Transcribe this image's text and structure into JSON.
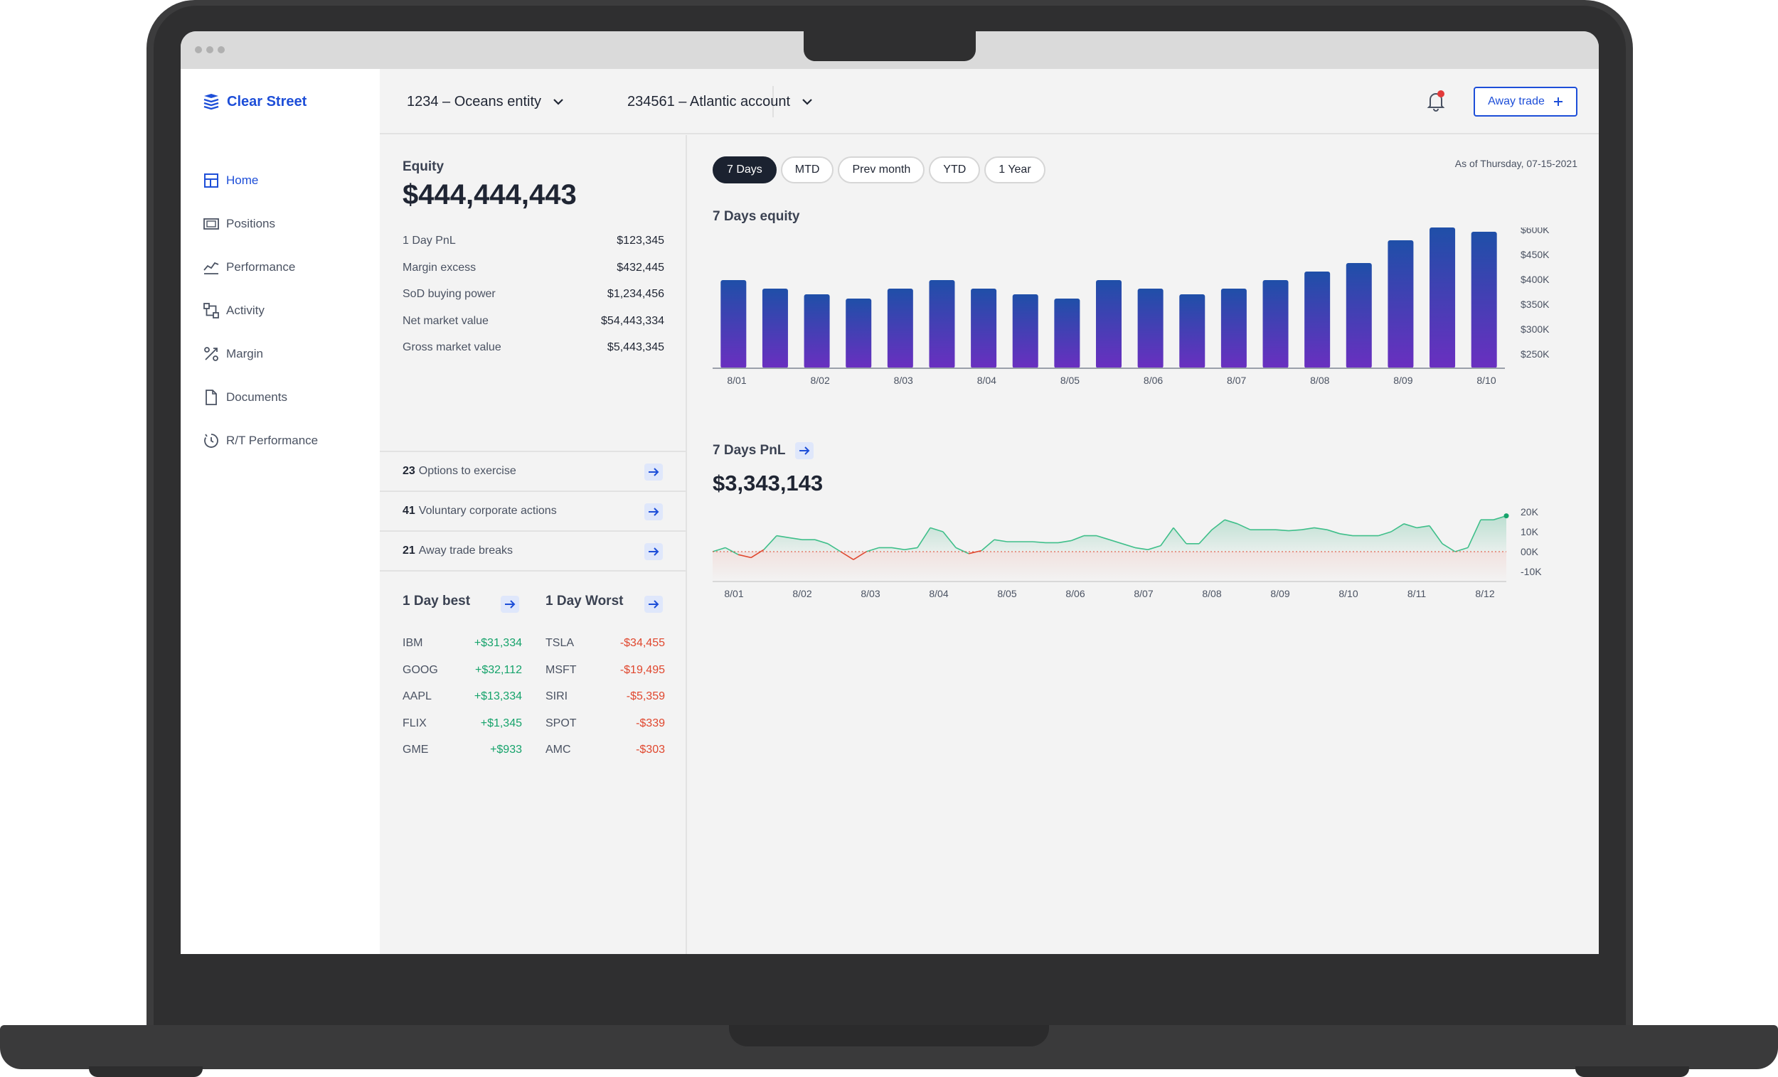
{
  "app": {
    "brand": "Clear Street"
  },
  "sidebar": {
    "items": [
      {
        "label": "Home",
        "icon": "home-icon",
        "active": true
      },
      {
        "label": "Positions",
        "icon": "positions-icon"
      },
      {
        "label": "Performance",
        "icon": "performance-icon"
      },
      {
        "label": "Activity",
        "icon": "activity-icon"
      },
      {
        "label": "Margin",
        "icon": "margin-icon"
      },
      {
        "label": "Documents",
        "icon": "documents-icon"
      },
      {
        "label": "R/T Performance",
        "icon": "rt-performance-icon"
      }
    ]
  },
  "topbar": {
    "entity": "1234 – Oceans entity",
    "account": "234561 – Atlantic account",
    "away_trade": "Away trade"
  },
  "summary": {
    "equity_label": "Equity",
    "equity_value": "$444,444,443",
    "metrics": [
      {
        "label": "1 Day PnL",
        "value": "$123,345"
      },
      {
        "label": "Margin excess",
        "value": "$432,445"
      },
      {
        "label": "SoD buying power",
        "value": "$1,234,456"
      },
      {
        "label": "Net market value",
        "value": "$54,443,334"
      },
      {
        "label": "Gross market value",
        "value": "$5,443,345"
      }
    ],
    "actions": [
      {
        "count": "23",
        "label": "Options to exercise"
      },
      {
        "count": "41",
        "label": "Voluntary corporate actions"
      },
      {
        "count": "21",
        "label": "Away trade breaks"
      }
    ],
    "best_title": "1 Day best",
    "worst_title": "1 Day Worst",
    "best": [
      {
        "ticker": "IBM",
        "value": "+$31,334"
      },
      {
        "ticker": "GOOG",
        "value": "+$32,112"
      },
      {
        "ticker": "AAPL",
        "value": "+$13,334"
      },
      {
        "ticker": "FLIX",
        "value": "+$1,345"
      },
      {
        "ticker": "GME",
        "value": "+$933"
      }
    ],
    "worst": [
      {
        "ticker": "TSLA",
        "value": "-$34,455"
      },
      {
        "ticker": "MSFT",
        "value": "-$19,495"
      },
      {
        "ticker": "SIRI",
        "value": "-$5,359"
      },
      {
        "ticker": "SPOT",
        "value": "-$339"
      },
      {
        "ticker": "AMC",
        "value": "-$303"
      }
    ]
  },
  "range": {
    "pills": [
      "7 Days",
      "MTD",
      "Prev month",
      "YTD",
      "1 Year"
    ],
    "active": "7 Days",
    "as_of": "As of Thursday, 07-15-2021"
  },
  "colors": {
    "accent": "#1d4ed8",
    "positive": "#16a36b",
    "negative": "#e0472e",
    "bar_top": "#1f4fa8",
    "bar_bottom": "#6a2fc0"
  },
  "chart_data": [
    {
      "type": "bar",
      "title": "7 Days equity",
      "y_tick_labels": [
        "$600K",
        "$450K",
        "$400K",
        "$350K",
        "$300K",
        "$250K"
      ],
      "x_tick_labels": [
        "8/01",
        "8/02",
        "8/03",
        "8/04",
        "8/05",
        "8/06",
        "8/07",
        "8/08",
        "8/09",
        "8/10"
      ],
      "values": [
        0.62,
        0.56,
        0.52,
        0.49,
        0.56,
        0.62,
        0.56,
        0.52,
        0.49,
        0.62,
        0.56,
        0.52,
        0.56,
        0.62,
        0.68,
        0.74,
        0.9,
        0.99,
        0.96
      ],
      "grid": false
    },
    {
      "type": "area",
      "title": "7 Days PnL",
      "headline_value": "$3,343,143",
      "y_tick_labels": [
        "20K",
        "10K",
        "00K",
        "-10K"
      ],
      "x_tick_labels": [
        "8/01",
        "8/02",
        "8/03",
        "8/04",
        "8/05",
        "8/06",
        "8/07",
        "8/08",
        "8/09",
        "8/10",
        "8/11",
        "8/12"
      ],
      "ylim": [
        -15,
        20
      ],
      "values": [
        0,
        2,
        -1.5,
        -3,
        1,
        8,
        7,
        6,
        6,
        4,
        0,
        -4,
        0,
        2,
        2,
        1,
        2,
        12,
        10,
        2,
        -1,
        0.5,
        6,
        5,
        5,
        5,
        4.5,
        4.5,
        5.5,
        8,
        8,
        6,
        4,
        2,
        1,
        3,
        12,
        4,
        4,
        11,
        16,
        14,
        11,
        11,
        11,
        10.5,
        11,
        12,
        11,
        9,
        8,
        8,
        8,
        10,
        14,
        12,
        13,
        4,
        0,
        2,
        16,
        16,
        18
      ],
      "grid": false
    }
  ]
}
